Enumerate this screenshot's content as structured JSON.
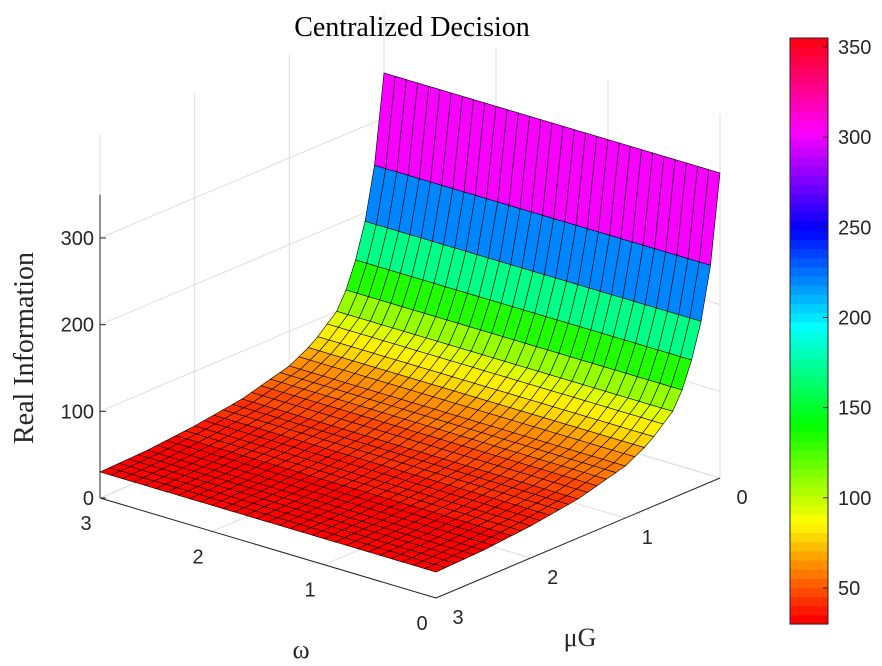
{
  "chart_data": {
    "type": "surface",
    "title": "Centralized Decision",
    "xlabel": "ω",
    "ylabel": "μG",
    "zlabel": "Real Information",
    "xlim": [
      0,
      3
    ],
    "ylim": [
      0,
      3
    ],
    "zlim": [
      0,
      350
    ],
    "x_ticks": [
      "0",
      "1",
      "2",
      "3"
    ],
    "y_ticks": [
      "0",
      "1",
      "2",
      "3"
    ],
    "z_ticks": [
      "0",
      "100",
      "200",
      "300"
    ],
    "colorbar": {
      "ticks": [
        "50",
        "100",
        "150",
        "200",
        "250",
        "300",
        "350"
      ],
      "range": [
        30,
        355
      ],
      "colormap": "hsv"
    },
    "grid": true,
    "surface_profile": {
      "description_axis": "μG",
      "mu": [
        0,
        0.1,
        0.2,
        0.3,
        0.4,
        0.5,
        0.75,
        1.0,
        1.5,
        2.0,
        2.5,
        3.0
      ],
      "value": [
        352,
        250,
        190,
        150,
        120,
        100,
        75,
        60,
        45,
        37,
        32,
        30
      ],
      "constant_along": "ω"
    },
    "colors": {
      "surface_edge": "#000000",
      "axis": "#262626",
      "grid": "#dedede"
    }
  }
}
